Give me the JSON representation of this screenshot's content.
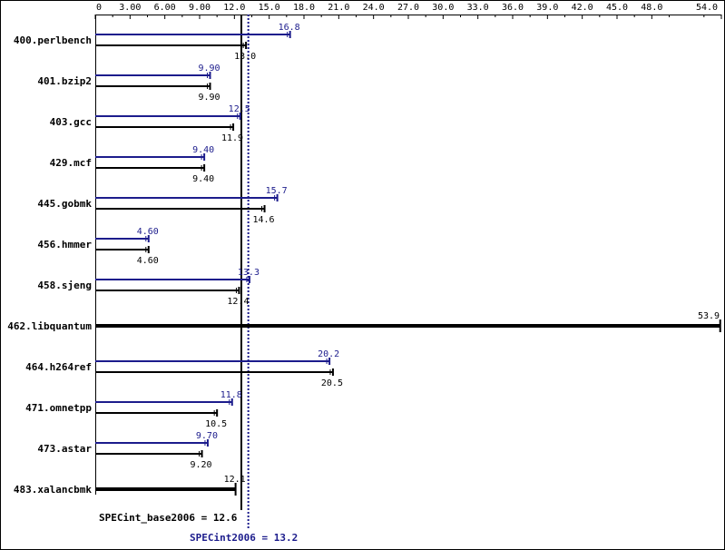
{
  "chart_data": {
    "type": "bar",
    "orientation": "horizontal",
    "xlim": [
      0,
      54.0
    ],
    "x_ticks": [
      "0",
      "3.00",
      "6.00",
      "9.00",
      "12.0",
      "15.0",
      "18.0",
      "21.0",
      "24.0",
      "27.0",
      "30.0",
      "33.0",
      "36.0",
      "39.0",
      "42.0",
      "45.0",
      "48.0",
      "54.0"
    ],
    "categories": [
      "400.perlbench",
      "401.bzip2",
      "403.gcc",
      "429.mcf",
      "445.gobmk",
      "456.hmmer",
      "458.sjeng",
      "462.libquantum",
      "464.h264ref",
      "471.omnetpp",
      "473.astar",
      "483.xalancbmk"
    ],
    "series": [
      {
        "key": "peak",
        "values": [
          16.8,
          9.9,
          12.5,
          9.4,
          15.7,
          4.6,
          13.3,
          null,
          20.2,
          11.8,
          9.7,
          null
        ],
        "labels": [
          "16.8",
          "9.90",
          "12.5",
          "9.40",
          "15.7",
          "4.60",
          "13.3",
          "",
          "20.2",
          "11.8",
          "9.70",
          ""
        ]
      },
      {
        "key": "base",
        "values": [
          13.0,
          9.9,
          11.9,
          9.4,
          14.6,
          4.6,
          12.4,
          null,
          20.5,
          10.5,
          9.2,
          null
        ],
        "labels": [
          "13.0",
          "9.90",
          "11.9",
          "9.40",
          "14.6",
          "4.60",
          "12.4",
          "",
          "20.5",
          "10.5",
          "9.20",
          ""
        ]
      },
      {
        "key": "combined",
        "values": [
          null,
          null,
          null,
          null,
          null,
          null,
          null,
          53.9,
          null,
          null,
          null,
          12.1
        ],
        "labels": [
          "",
          "",
          "",
          "",
          "",
          "",
          "",
          "53.9",
          "",
          "",
          "",
          "12.1"
        ]
      }
    ],
    "reference_lines": [
      {
        "key": "base",
        "value": 12.6,
        "style": "solid"
      },
      {
        "key": "peak",
        "value": 13.2,
        "style": "dotted"
      }
    ],
    "summary_base": "SPECint_base2006 = 12.6",
    "summary_peak": "SPECint2006 = 13.2",
    "colors": {
      "peak": "#1c1c8c",
      "base": "#000000",
      "background": "#ffffff"
    }
  }
}
